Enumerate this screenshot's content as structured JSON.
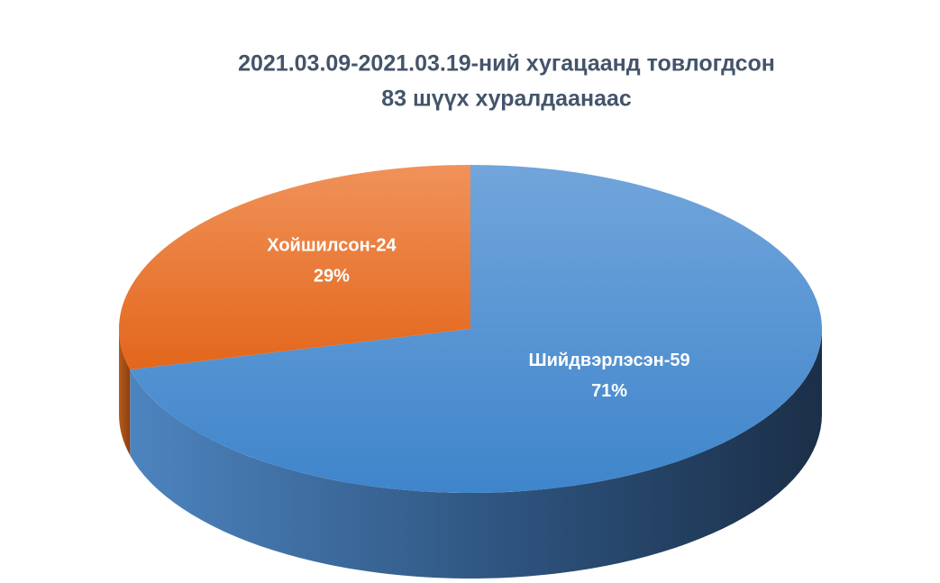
{
  "chart_data": {
    "type": "pie",
    "title": [
      "2021.03.09-2021.03.19-ний хугацаанд товлогдсон",
      "83 шүүх хуралдаанаас"
    ],
    "categories": [
      "Шийдвэрлэсэн-59",
      "Хойшилсон-24"
    ],
    "values": [
      71,
      29
    ],
    "value_labels": [
      "71%",
      "29%"
    ],
    "colors": [
      "#5b9bd5",
      "#ed7d31"
    ]
  }
}
